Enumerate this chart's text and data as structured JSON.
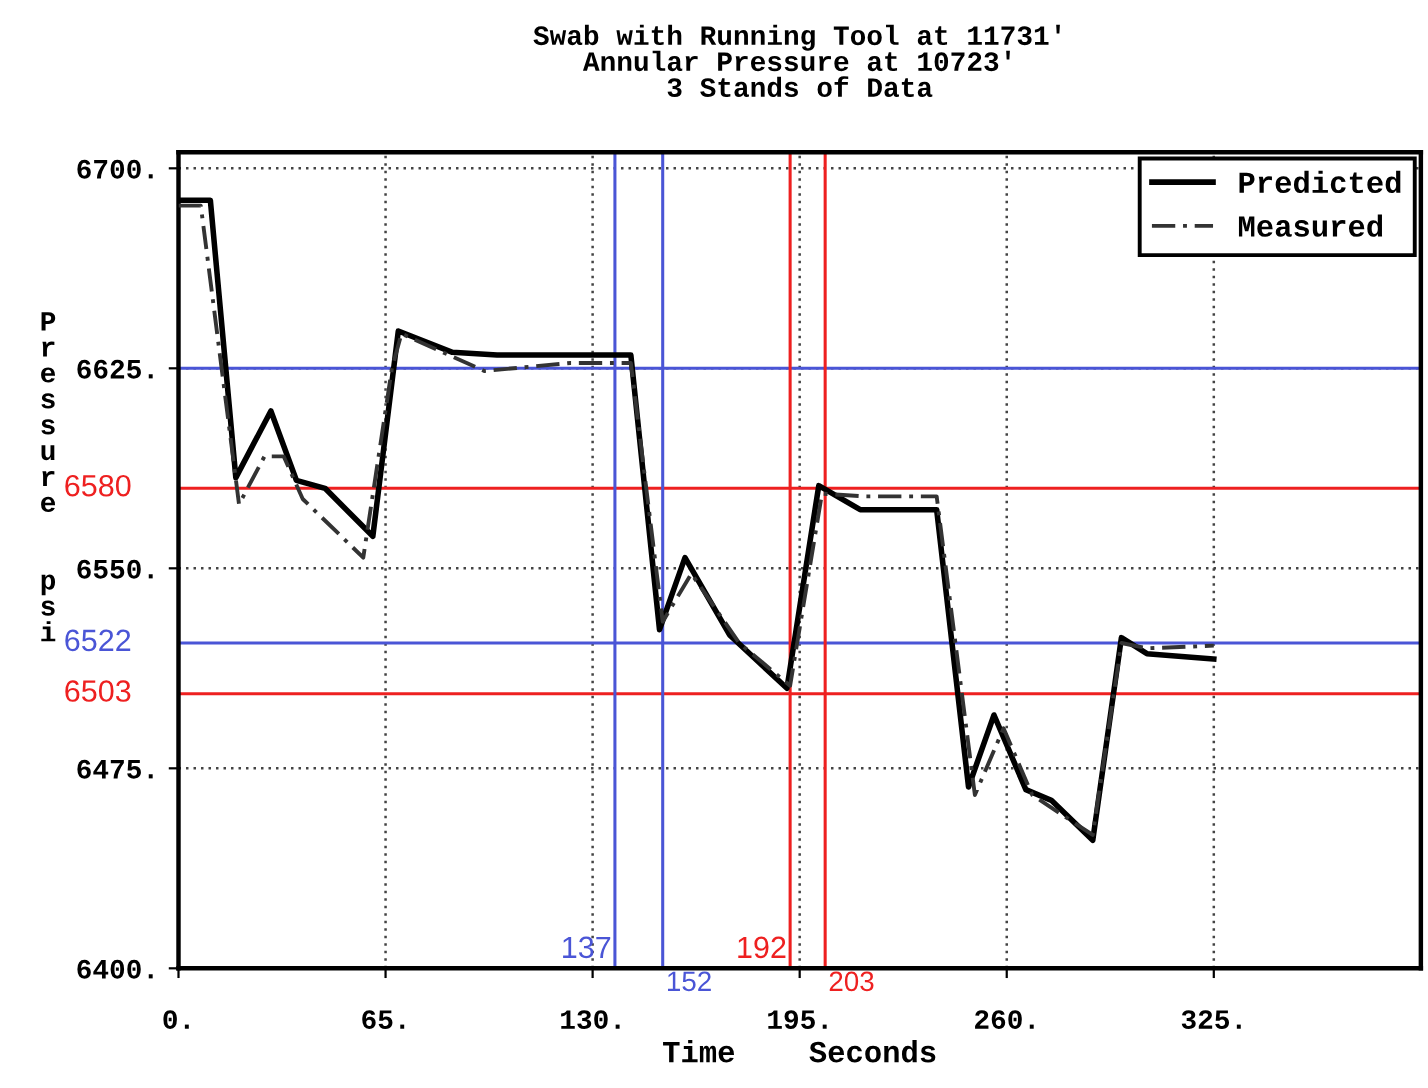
{
  "chart_data": {
    "type": "line",
    "title": "Swab with Running Tool at 11731'\nAnnular Pressure at 10723'\n3 Stands of Data",
    "xlabel": "Time    Seconds",
    "ylabel": "Pressure  psi",
    "series": [
      {
        "name": "Predicted",
        "color": "#000000",
        "line_style": "solid",
        "x": [
          0,
          10,
          18,
          29,
          37,
          46,
          61,
          69,
          86,
          100,
          142,
          151,
          159,
          173,
          191,
          201,
          214,
          238,
          248,
          256,
          266,
          274,
          287,
          296,
          304,
          325
        ],
        "values": [
          6688,
          6688,
          6584,
          6609,
          6583,
          6580,
          6562,
          6639,
          6631,
          6630,
          6630,
          6527,
          6554,
          6525,
          6505,
          6581,
          6572,
          6572,
          6468,
          6495,
          6467,
          6463,
          6448,
          6524,
          6518,
          6516
        ]
      },
      {
        "name": "Measured",
        "color": "#333333",
        "line_style": "dashed",
        "x": [
          0,
          7,
          19,
          27,
          33,
          39,
          58,
          67,
          70,
          96,
          123,
          142,
          152,
          161,
          176,
          192,
          202,
          215,
          238,
          250,
          259,
          268,
          287,
          296,
          304,
          325
        ],
        "values": [
          6686,
          6686,
          6574,
          6592,
          6592,
          6576,
          6554,
          6625,
          6638,
          6624,
          6627,
          6627,
          6530,
          6548,
          6522,
          6506,
          6578,
          6577,
          6577,
          6465,
          6490,
          6465,
          6450,
          6522,
          6520,
          6521
        ]
      }
    ],
    "xlim": [
      0,
      390
    ],
    "ylim": [
      6400,
      6706
    ],
    "xticks": [
      {
        "value": 0,
        "label": "0."
      },
      {
        "value": 65,
        "label": "65."
      },
      {
        "value": 130,
        "label": "130."
      },
      {
        "value": 195,
        "label": "195."
      },
      {
        "value": 260,
        "label": "260."
      },
      {
        "value": 325,
        "label": "325."
      }
    ],
    "yticks": [
      {
        "value": 6400,
        "label": "6400."
      },
      {
        "value": 6475,
        "label": "6475."
      },
      {
        "value": 6550,
        "label": "6550."
      },
      {
        "value": 6625,
        "label": "6625."
      },
      {
        "value": 6700,
        "label": "6700."
      }
    ],
    "ref_lines": [
      {
        "axis": "y",
        "value": 6625,
        "label": null,
        "color": "#4a55d6"
      },
      {
        "axis": "y",
        "value": 6580,
        "label": "6580",
        "color": "#ee2020"
      },
      {
        "axis": "y",
        "value": 6522,
        "label": "6522",
        "color": "#4a55d6"
      },
      {
        "axis": "y",
        "value": 6503,
        "label": "6503",
        "color": "#ee2020"
      },
      {
        "axis": "x",
        "value": 137,
        "label": "137",
        "color": "#4a55d6"
      },
      {
        "axis": "x",
        "value": 152,
        "label": "152",
        "color": "#4a55d6"
      },
      {
        "axis": "x",
        "value": 192,
        "label": "192",
        "color": "#ee2020"
      },
      {
        "axis": "x",
        "value": 203,
        "label": "203",
        "color": "#ee2020"
      }
    ],
    "grid": true,
    "legend": "top right"
  }
}
